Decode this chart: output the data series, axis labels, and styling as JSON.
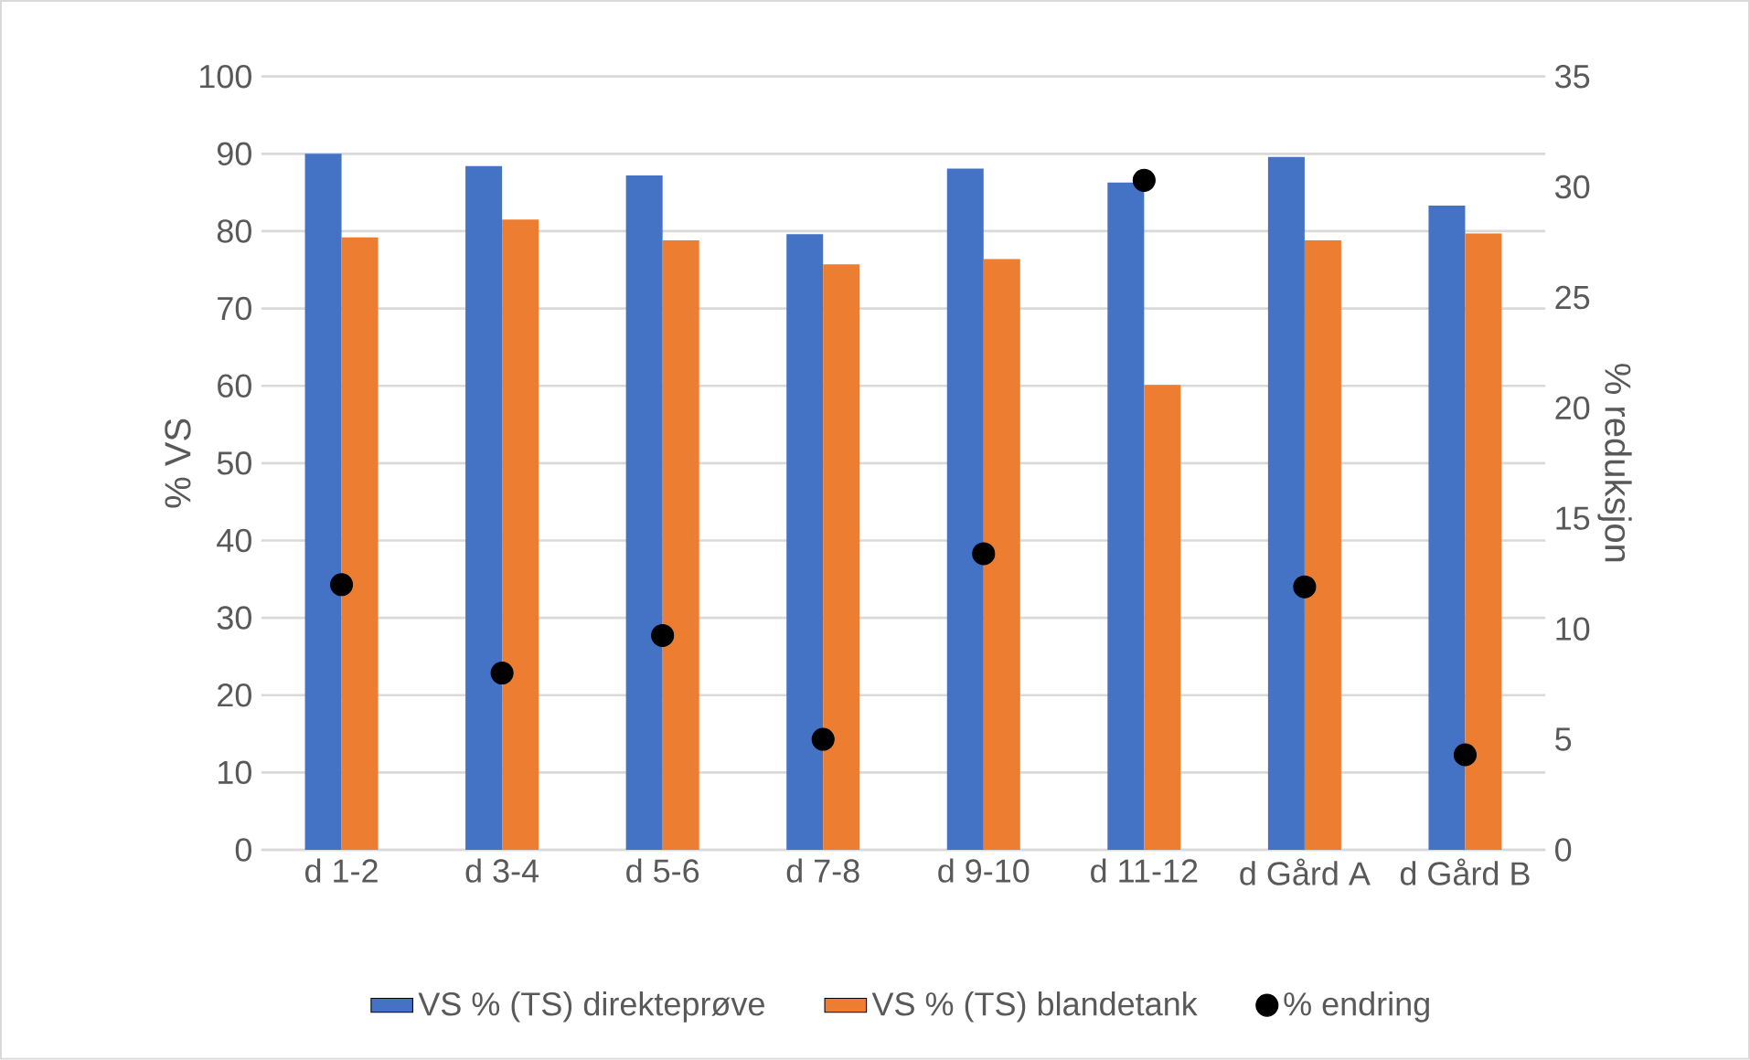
{
  "chart_data": {
    "type": "bar",
    "categories": [
      "d 1-2",
      "d 3-4",
      "d 5-6",
      "d 7-8",
      "d 9-10",
      "d 11-12",
      "d Gård A",
      "d Gård B"
    ],
    "ylabel": "% VS",
    "y2label": "% reduksjon",
    "ylim": [
      0,
      100
    ],
    "yticks": [
      0,
      10,
      20,
      30,
      40,
      50,
      60,
      70,
      80,
      90,
      100
    ],
    "y2lim": [
      0,
      35
    ],
    "y2ticks": [
      0,
      5,
      10,
      15,
      20,
      25,
      30,
      35
    ],
    "grid": "y",
    "legend": "bottom",
    "marker": "circle",
    "series": [
      {
        "name": "VS % (TS) direkteprøve",
        "color": "#4472c4",
        "values": [
          90.0,
          88.4,
          87.2,
          79.6,
          88.1,
          86.3,
          89.6,
          83.3
        ]
      },
      {
        "name": "VS % (TS) blandetank",
        "color": "#ed7d31",
        "values": [
          79.2,
          81.5,
          78.8,
          75.7,
          76.4,
          60.1,
          78.8,
          79.7
        ]
      },
      {
        "name": "% endring",
        "type": "scatter",
        "axis": "y2",
        "color": "#000000",
        "values": [
          12.0,
          8.0,
          9.7,
          5.0,
          13.4,
          30.3,
          11.9,
          4.3
        ]
      }
    ]
  }
}
